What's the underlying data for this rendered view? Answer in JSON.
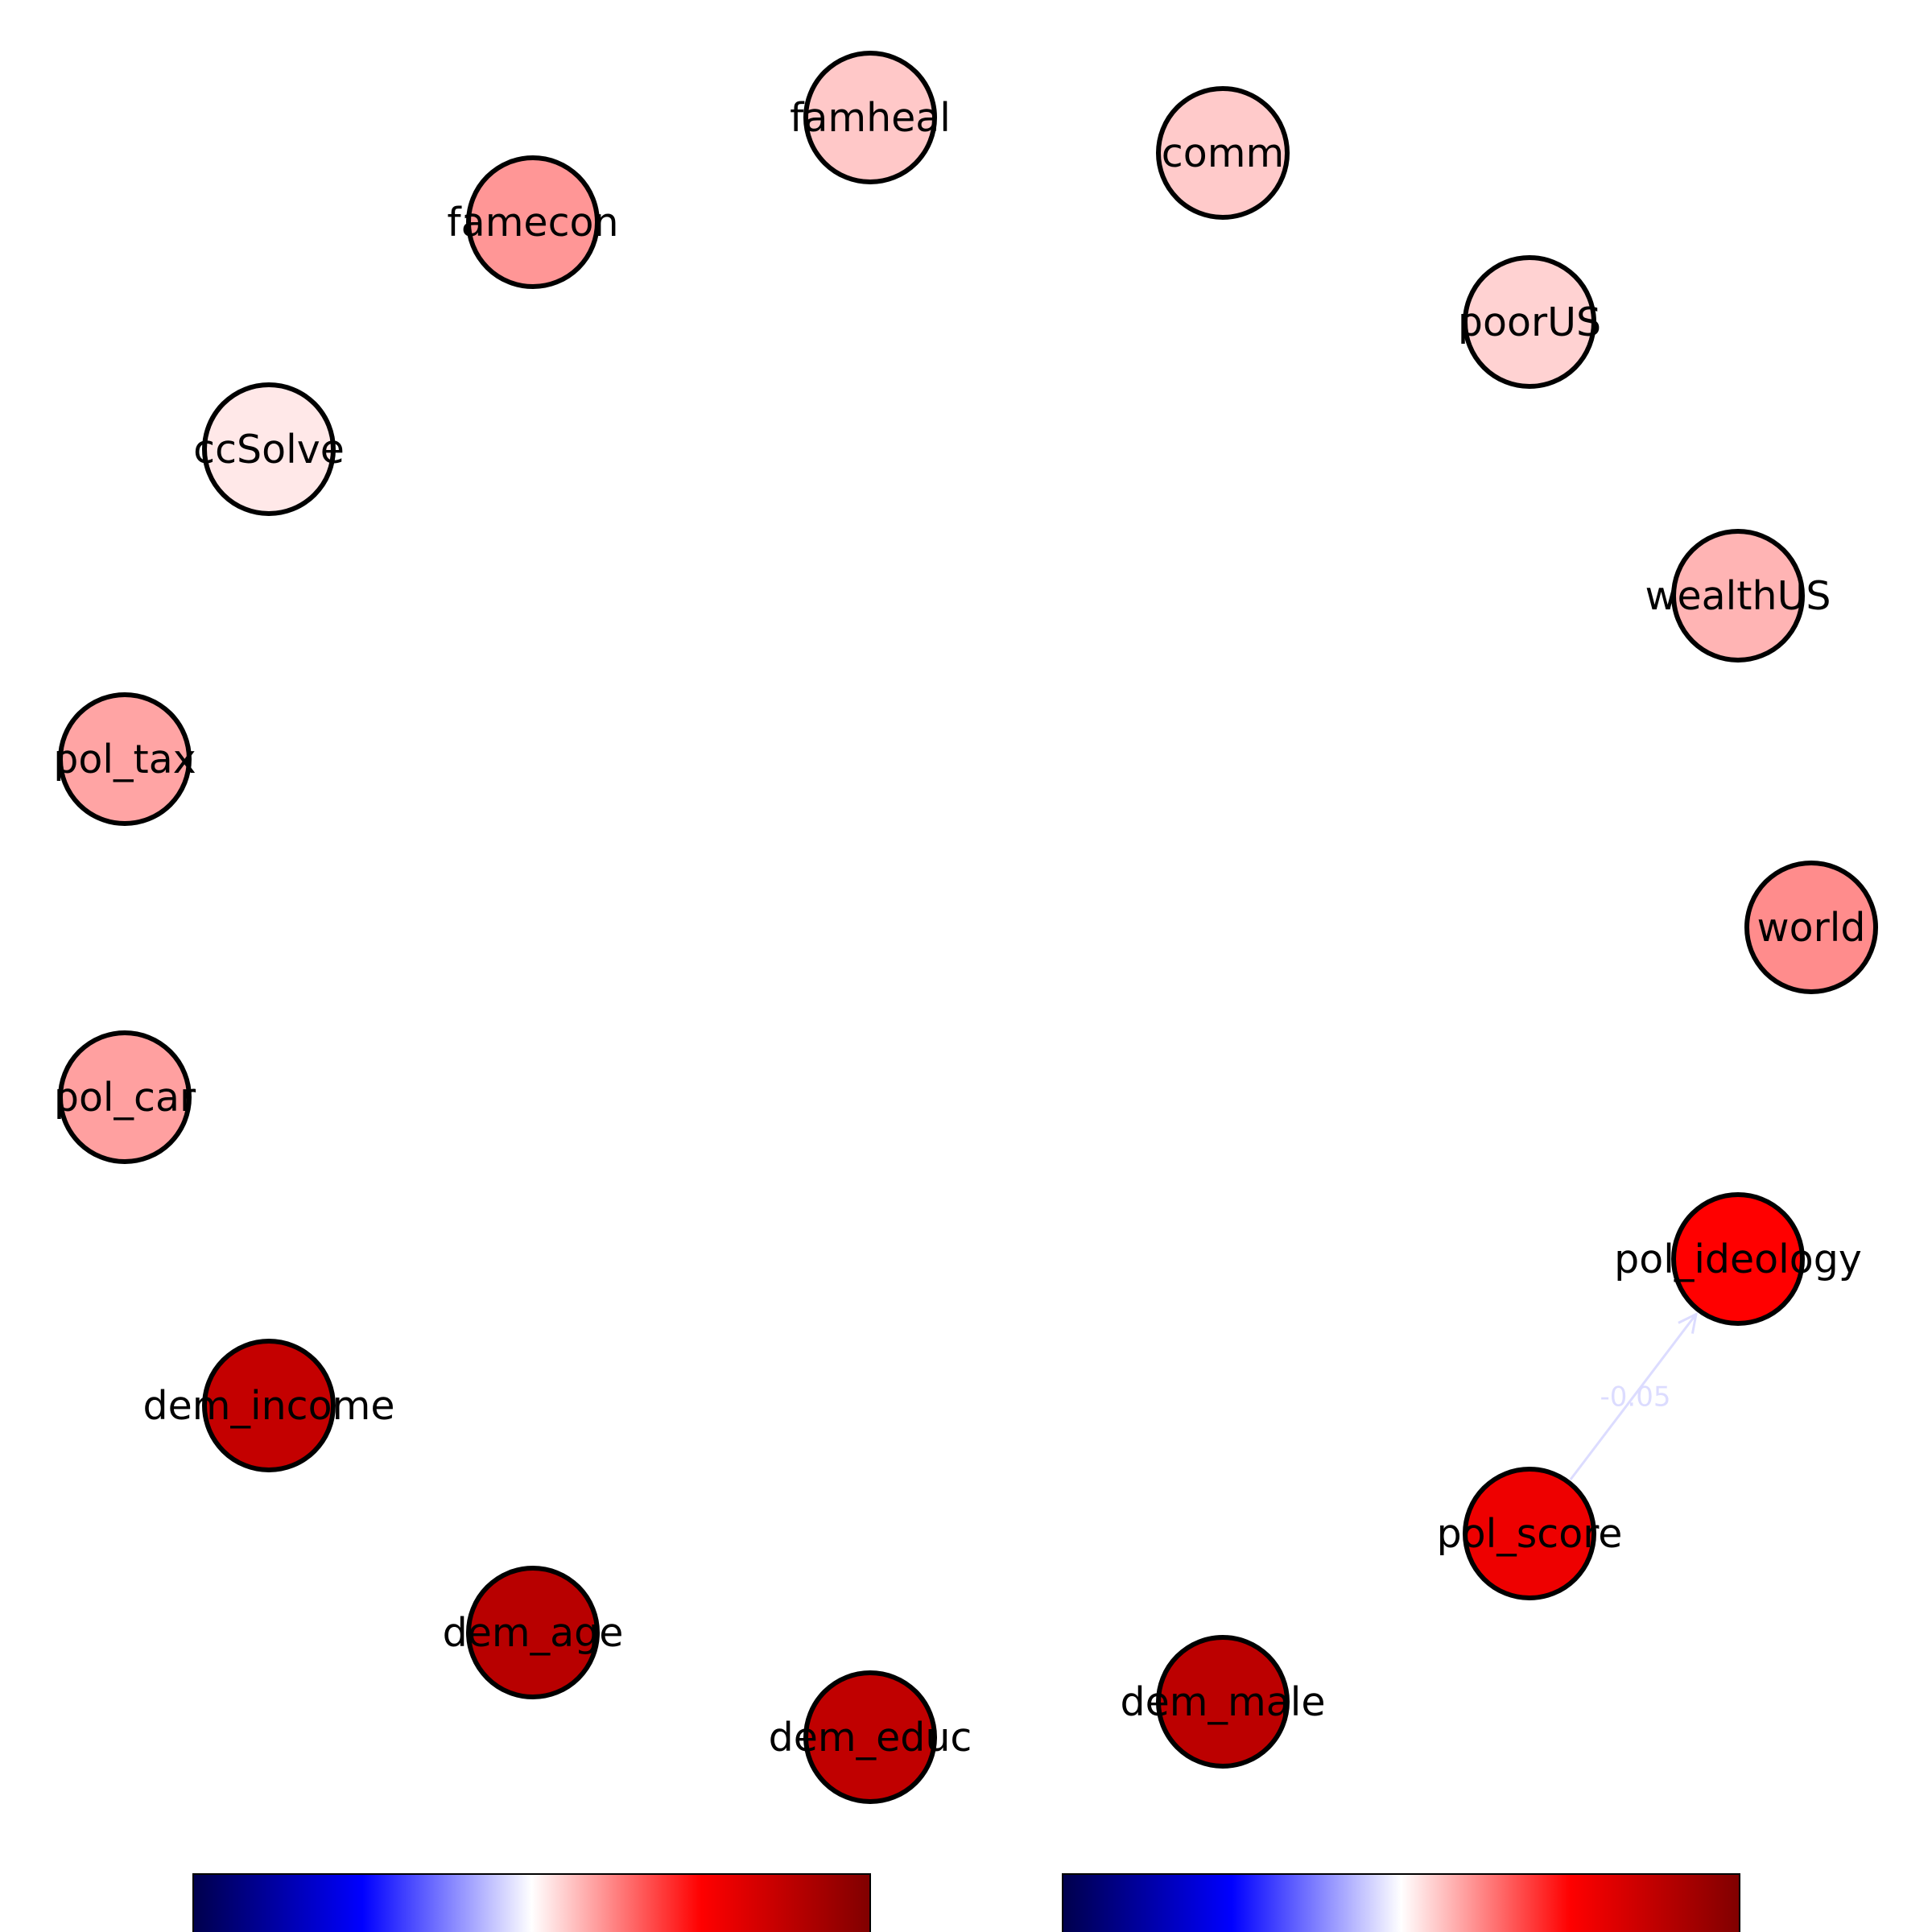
{
  "nodes": [
    {
      "id": "famheal",
      "label": "famheal",
      "value": 0.6,
      "fill": "#ffc8c8"
    },
    {
      "id": "comm",
      "label": "comm",
      "value": 0.6,
      "fill": "#ffcaca"
    },
    {
      "id": "famecon",
      "label": "famecon",
      "value": 0.72,
      "fill": "#ff9696"
    },
    {
      "id": "poorUS",
      "label": "poorUS",
      "value": 0.58,
      "fill": "#ffd2d2"
    },
    {
      "id": "ccSolve",
      "label": "ccSolve",
      "value": 0.54,
      "fill": "#ffe8e8"
    },
    {
      "id": "wealthUS",
      "label": "wealthUS",
      "value": 0.63,
      "fill": "#ffb4b4"
    },
    {
      "id": "pol_tax",
      "label": "pol_tax",
      "value": 0.66,
      "fill": "#ffa4a4"
    },
    {
      "id": "world",
      "label": "world",
      "value": 0.7,
      "fill": "#ff8c8c"
    },
    {
      "id": "pol_car",
      "label": "pol_car",
      "value": 0.67,
      "fill": "#ffa0a0"
    },
    {
      "id": "pol_ideology",
      "label": "pol_ideology",
      "value": 0.9,
      "fill": "#ff0000"
    },
    {
      "id": "dem_income",
      "label": "dem_income",
      "value": 0.97,
      "fill": "#c40000"
    },
    {
      "id": "pol_score",
      "label": "pol_score",
      "value": 0.91,
      "fill": "#ee0000"
    },
    {
      "id": "dem_age",
      "label": "dem_age",
      "value": 0.98,
      "fill": "#b80000"
    },
    {
      "id": "dem_male",
      "label": "dem_male",
      "value": 0.98,
      "fill": "#bc0000"
    },
    {
      "id": "dem_educ",
      "label": "dem_educ",
      "value": 0.97,
      "fill": "#c00000"
    }
  ],
  "edges": [
    {
      "from": "pol_score",
      "to": "pol_ideology",
      "weight": -0.05,
      "label": "-0.05",
      "color": "#dcdcff"
    }
  ],
  "colorbars": [
    {
      "id": "node-colorbar",
      "cmap": "seismic"
    },
    {
      "id": "edge-colorbar",
      "cmap": "seismic"
    }
  ],
  "seismic_stops": [
    "#00004c",
    "#0000ff",
    "#ffffff",
    "#ff0000",
    "#800000"
  ]
}
